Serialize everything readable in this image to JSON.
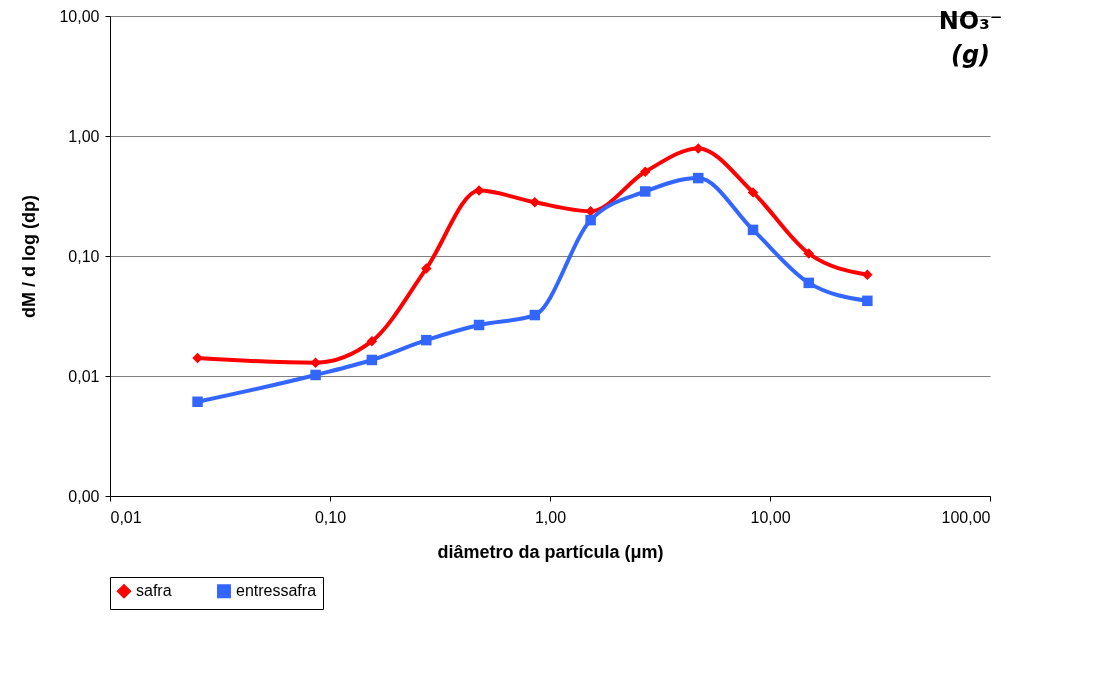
{
  "chart_data": {
    "type": "line",
    "title": "NO₃⁻",
    "subtitle": "(g)",
    "xlabel": "diâmetro da partícula (μm)",
    "ylabel": "dM / d log (dp)",
    "x": [
      0.025,
      0.086,
      0.155,
      0.274,
      0.476,
      0.853,
      1.53,
      2.71,
      4.72,
      8.37,
      15.0,
      27.7
    ],
    "series": [
      {
        "name": "safra",
        "color": "#ff0000",
        "marker": "diamond",
        "values": [
          0.0141,
          0.0129,
          0.0195,
          0.0786,
          0.351,
          0.28,
          0.236,
          0.503,
          0.787,
          0.339,
          0.105,
          0.0697
        ]
      },
      {
        "name": "entressafra",
        "color": "#3366ff",
        "marker": "square",
        "values": [
          0.0061,
          0.0102,
          0.0136,
          0.0199,
          0.0266,
          0.0322,
          0.199,
          0.345,
          0.446,
          0.165,
          0.0597,
          0.0423
        ]
      }
    ],
    "log": "xy",
    "xlim": [
      0.01,
      100
    ],
    "ylim": [
      0.001,
      10
    ],
    "xticks": [
      {
        "value": 0.01,
        "label": "0,01"
      },
      {
        "value": 0.1,
        "label": "0,10"
      },
      {
        "value": 1,
        "label": "1,00"
      },
      {
        "value": 10,
        "label": "10,00"
      },
      {
        "value": 100,
        "label": "100,00"
      }
    ],
    "yticks": [
      {
        "value": 0.001,
        "label": "0,00"
      },
      {
        "value": 0.01,
        "label": "0,01"
      },
      {
        "value": 0.1,
        "label": "0,10"
      },
      {
        "value": 1,
        "label": "1,00"
      },
      {
        "value": 10,
        "label": "10,00"
      }
    ],
    "grid": "y",
    "legend": "bottom",
    "line_style": "solid"
  }
}
